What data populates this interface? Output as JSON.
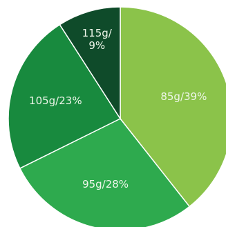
{
  "chart_data": {
    "type": "pie",
    "title": "",
    "slices": [
      {
        "label": "85g/39%",
        "line1": "85g/39%",
        "line2": "",
        "value": 39,
        "color": "#8bc34a"
      },
      {
        "label": "95g/28%",
        "line1": "95g/28%",
        "line2": "",
        "value": 28,
        "color": "#2eaa4e"
      },
      {
        "label": "105g/23%",
        "line1": "105g/23%",
        "line2": "",
        "value": 23,
        "color": "#188a3e"
      },
      {
        "label": "115g/9%",
        "line1": "115g/",
        "line2": "9%",
        "value": 9,
        "color": "#0f4b2a"
      }
    ],
    "start_angle_deg": 0,
    "direction": "clockwise",
    "legend": "none"
  }
}
